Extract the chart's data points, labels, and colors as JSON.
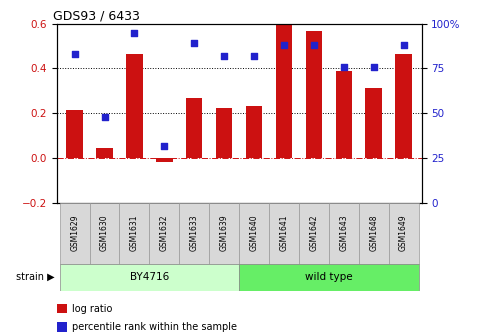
{
  "title": "GDS93 / 6433",
  "samples": [
    "GSM1629",
    "GSM1630",
    "GSM1631",
    "GSM1632",
    "GSM1633",
    "GSM1639",
    "GSM1640",
    "GSM1641",
    "GSM1642",
    "GSM1643",
    "GSM1648",
    "GSM1649"
  ],
  "log_ratio": [
    0.215,
    0.048,
    0.465,
    -0.015,
    0.27,
    0.225,
    0.235,
    0.595,
    0.565,
    0.39,
    0.315,
    0.465
  ],
  "percentile": [
    83,
    48,
    95,
    32,
    89,
    82,
    82,
    88,
    88,
    76,
    76,
    88
  ],
  "strains": [
    "BY4716",
    "BY4716",
    "BY4716",
    "BY4716",
    "BY4716",
    "BY4716",
    "wild type",
    "wild type",
    "wild type",
    "wild type",
    "wild type",
    "wild type"
  ],
  "bar_color": "#cc1111",
  "dot_color": "#2222cc",
  "ylim_left": [
    -0.2,
    0.6
  ],
  "ylim_right": [
    0,
    100
  ],
  "yticks_left": [
    -0.2,
    0.0,
    0.2,
    0.4,
    0.6
  ],
  "yticks_right": [
    0,
    25,
    50,
    75,
    100
  ],
  "ytick_right_labels": [
    "0",
    "25",
    "50",
    "75",
    "100%"
  ],
  "hlines": [
    0.2,
    0.4
  ],
  "zero_line": 0.0,
  "by4716_color": "#ccffcc",
  "wildtype_color": "#66ee66",
  "strain_label": "strain",
  "legend_labels": [
    "log ratio",
    "percentile rank within the sample"
  ],
  "background_color": "#ffffff",
  "strains_info": [
    {
      "label": "BY4716",
      "start": 0,
      "end": 5
    },
    {
      "label": "wild type",
      "start": 6,
      "end": 11
    }
  ]
}
